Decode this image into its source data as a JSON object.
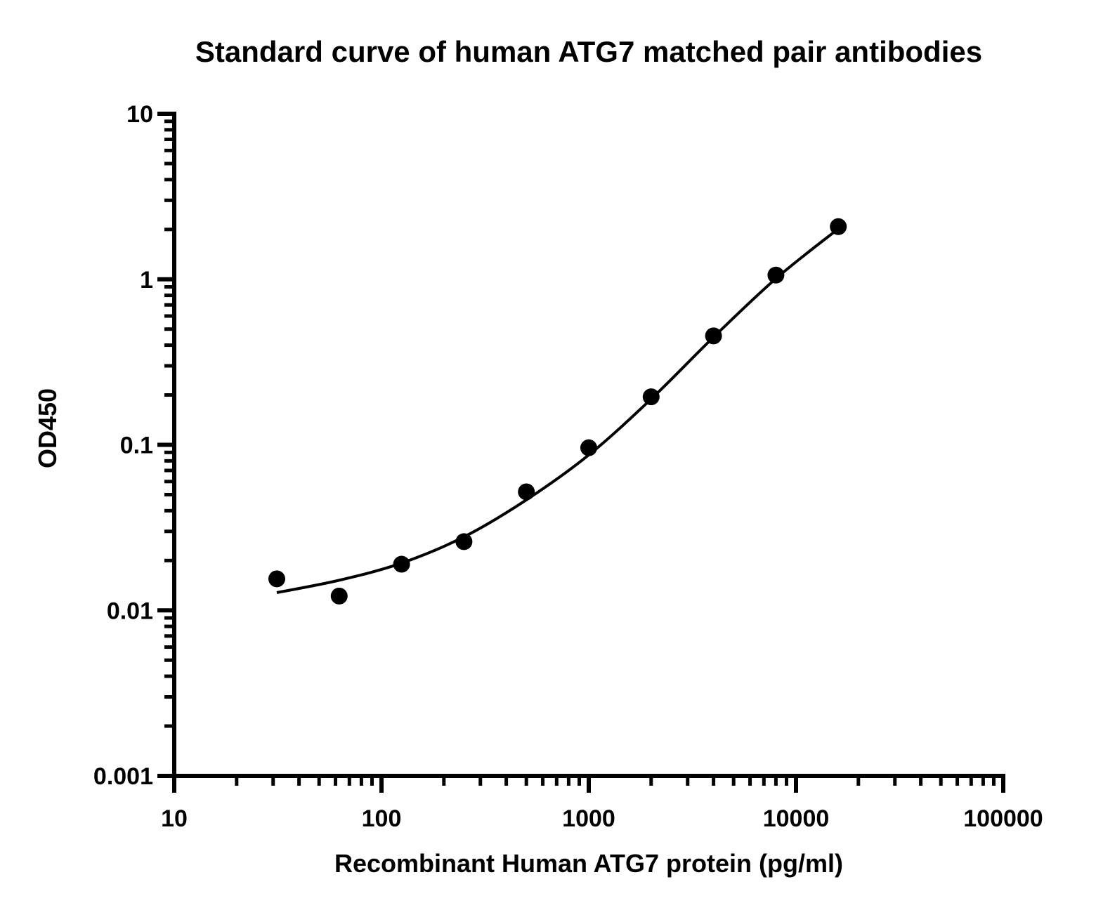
{
  "chart_data": {
    "type": "scatter",
    "title": "Standard curve of human ATG7 matched pair antibodies",
    "xlabel": "Recombinant Human ATG7 protein (pg/ml)",
    "ylabel": "OD450",
    "xscale": "log",
    "yscale": "log",
    "xlim": [
      10,
      100000
    ],
    "ylim": [
      0.001,
      10
    ],
    "x_ticks": [
      {
        "value": 10,
        "label": "10"
      },
      {
        "value": 100,
        "label": "100"
      },
      {
        "value": 1000,
        "label": "1000"
      },
      {
        "value": 10000,
        "label": "10000"
      },
      {
        "value": 100000,
        "label": "100000"
      }
    ],
    "y_ticks": [
      {
        "value": 0.001,
        "label": "0.001"
      },
      {
        "value": 0.01,
        "label": "0.01"
      },
      {
        "value": 0.1,
        "label": "0.1"
      },
      {
        "value": 1,
        "label": "1"
      },
      {
        "value": 10,
        "label": "10"
      }
    ],
    "grid": false,
    "legend": "none",
    "color": "#000000",
    "series": [
      {
        "values": [
          {
            "x": 31.25,
            "y": 0.0155
          },
          {
            "x": 62.5,
            "y": 0.0122
          },
          {
            "x": 125,
            "y": 0.019
          },
          {
            "x": 250,
            "y": 0.026
          },
          {
            "x": 500,
            "y": 0.052
          },
          {
            "x": 1000,
            "y": 0.096
          },
          {
            "x": 2000,
            "y": 0.195
          },
          {
            "x": 4000,
            "y": 0.455
          },
          {
            "x": 8000,
            "y": 1.06
          },
          {
            "x": 16000,
            "y": 2.08
          }
        ]
      }
    ],
    "fit_curve": {
      "type": "line",
      "values": [
        {
          "x": 31.25,
          "y": 0.0128
        },
        {
          "x": 62.5,
          "y": 0.0152
        },
        {
          "x": 125,
          "y": 0.0193
        },
        {
          "x": 250,
          "y": 0.0278
        },
        {
          "x": 500,
          "y": 0.0465
        },
        {
          "x": 1000,
          "y": 0.0868
        },
        {
          "x": 2000,
          "y": 0.189
        },
        {
          "x": 4000,
          "y": 0.447
        },
        {
          "x": 8000,
          "y": 1.01
        },
        {
          "x": 16000,
          "y": 2.02
        }
      ]
    }
  }
}
